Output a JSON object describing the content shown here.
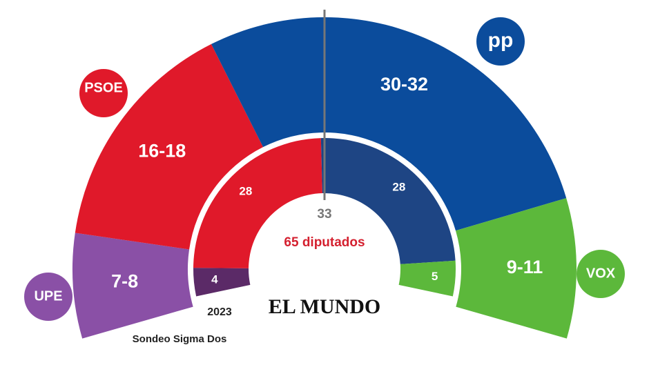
{
  "chart_data": {
    "type": "parliament",
    "series": [
      {
        "name": "UPE",
        "color": "#8a50a6",
        "inner_color": "#5b2a67",
        "forecast": [
          7,
          8
        ],
        "value_labels": "7-8",
        "result_2023": 4
      },
      {
        "name": "PSOE",
        "color": "#e0192a",
        "inner_color": "#e0192a",
        "forecast": [
          16,
          18
        ],
        "value_labels": "16-18",
        "result_2023": 28
      },
      {
        "name": "pp",
        "color": "#0b4c9c",
        "inner_color": "#1e4584",
        "forecast": [
          30,
          32
        ],
        "value_labels": "30-32",
        "result_2023": 28
      },
      {
        "name": "VOX",
        "color": "#5cb83b",
        "inner_color": "#5cb83b",
        "forecast": [
          9,
          11
        ],
        "value_labels": "9-11",
        "result_2023": 5
      }
    ],
    "majority": 33,
    "center_label": "65 diputados",
    "inner_ring_label": "2023",
    "source": "Sondeo Sigma Dos",
    "brand": "EL MUNDO"
  }
}
